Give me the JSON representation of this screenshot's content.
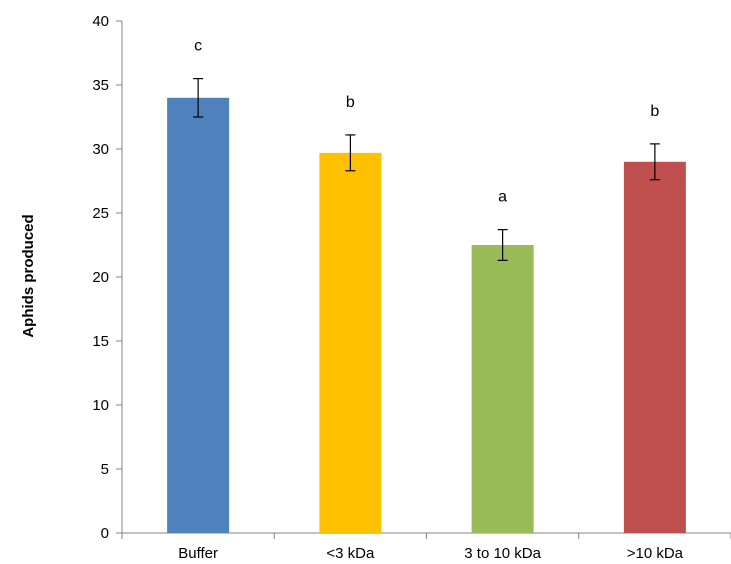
{
  "chart_data": {
    "type": "bar",
    "categories": [
      "Buffer",
      "<3 kDa",
      "3 to 10 kDa",
      ">10 kDa"
    ],
    "values": [
      34.0,
      29.7,
      22.5,
      29.0
    ],
    "errors": [
      1.5,
      1.4,
      1.2,
      1.4
    ],
    "significance_labels": [
      "c",
      "b",
      "a",
      "b"
    ],
    "bar_colors": [
      "#4f81bd",
      "#ffc000",
      "#9bbb59",
      "#c0504d"
    ],
    "ylabel": "Aphids produced",
    "xlabel": "",
    "ylim": [
      0,
      40
    ],
    "yticks": [
      "0",
      "5",
      "10",
      "15",
      "20",
      "25",
      "30",
      "35",
      "40"
    ],
    "ytick_values": [
      0,
      5,
      10,
      15,
      20,
      25,
      30,
      35,
      40
    ],
    "grid": false,
    "legend": "none"
  }
}
